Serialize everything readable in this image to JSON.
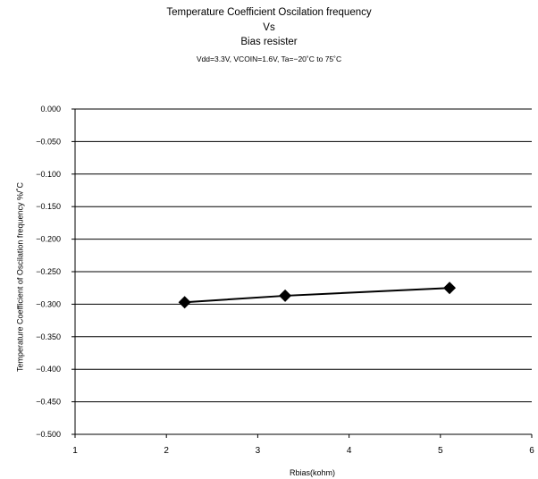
{
  "chart_data": {
    "type": "line",
    "title": "Temperature Coefficient Oscilation frequency",
    "title_line2": "Vs",
    "title_line3": "Bias resister",
    "subtitle": "Vdd=3.3V, VCOIN=1.6V, Ta=−20˚C to 75˚C",
    "xlabel": "Rbias(kohm)",
    "ylabel": "Temperature Coefficient of  Oscilation frequency %/˚C",
    "xlim": [
      1,
      6
    ],
    "ylim": [
      -0.5,
      0.0
    ],
    "x_ticks": [
      "1",
      "2",
      "3",
      "4",
      "5",
      "6"
    ],
    "y_ticks": [
      "0.000",
      "−0.050",
      "−0.100",
      "−0.150",
      "−0.200",
      "−0.250",
      "−0.300",
      "−0.350",
      "−0.400",
      "−0.450",
      "−0.500"
    ],
    "grid": "horizontal",
    "legend": "none",
    "series": [
      {
        "x": [
          2.2,
          3.3,
          5.1
        ],
        "y": [
          -0.297,
          -0.287,
          -0.275
        ],
        "marker": "diamond",
        "color": "#000000"
      }
    ]
  }
}
